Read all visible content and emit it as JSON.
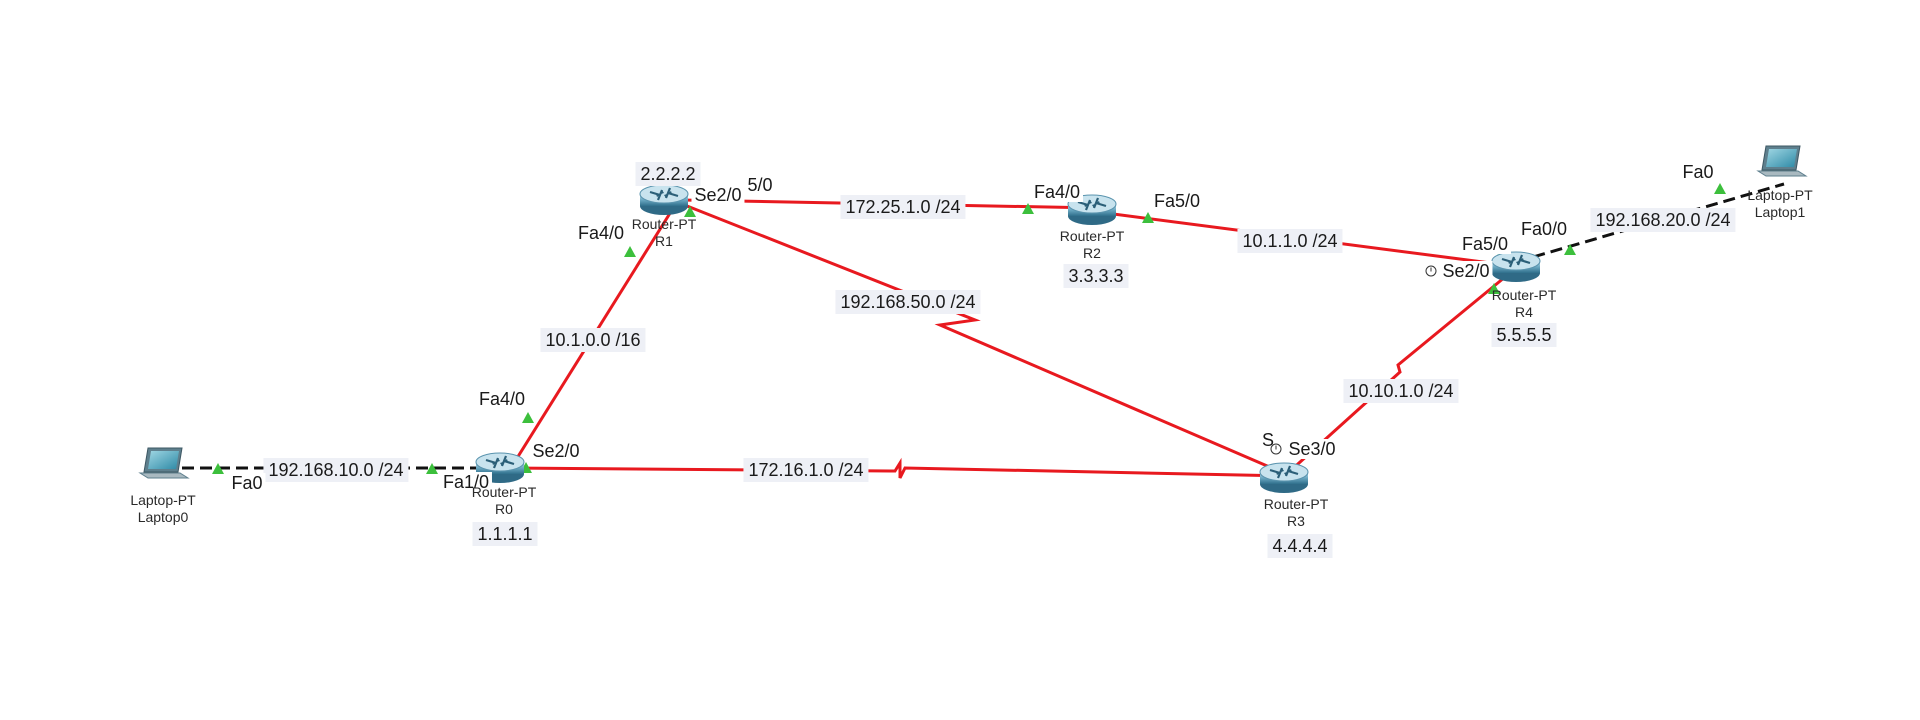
{
  "colors": {
    "serial_link": "#e8191f",
    "ethernet_link": "#111111",
    "port_indicator": "#3cbf3c",
    "label_background": "#eef0f6"
  },
  "devices": {
    "r0": {
      "model": "Router-PT",
      "name": "R0",
      "ip": "1.1.1.1",
      "icon": "router-icon"
    },
    "r1": {
      "model": "Router-PT",
      "name": "R1",
      "ip": "2.2.2.2",
      "icon": "router-icon"
    },
    "r2": {
      "model": "Router-PT",
      "name": "R2",
      "ip": "3.3.3.3",
      "icon": "router-icon"
    },
    "r3": {
      "model": "Router-PT",
      "name": "R3",
      "ip": "4.4.4.4",
      "icon": "router-icon"
    },
    "r4": {
      "model": "Router-PT",
      "name": "R4",
      "ip": "5.5.5.5",
      "icon": "router-icon"
    },
    "laptop0": {
      "model": "Laptop-PT",
      "name": "Laptop0",
      "icon": "laptop-icon"
    },
    "laptop1": {
      "model": "Laptop-PT",
      "name": "Laptop1",
      "icon": "laptop-icon"
    }
  },
  "networks": {
    "lan_left": "192.168.10.0 /24",
    "r0_r1": "10.1.0.0 /16",
    "r0_r3": "172.16.1.0 /24",
    "r1_r2": "172.25.1.0 /24",
    "r1_r3": "192.168.50.0 /24",
    "r2_r4": "10.1.1.0 /24",
    "r3_r4": "10.10.1.0 /24",
    "lan_right": "192.168.20.0 /24"
  },
  "ports": {
    "laptop0_fa0": "Fa0",
    "r0_fa1_0": "Fa1/0",
    "r0_fa4_0": "Fa4/0",
    "r0_se2_0": "Se2/0",
    "r1_fa4_0": "Fa4/0",
    "r1_se2_0": "Se2/0",
    "r1_fa5_0_partial": "5/0",
    "r2_fa4_0": "Fa4/0",
    "r2_fa5_0": "Fa5/0",
    "r3_se3_0": "Se3/0",
    "r3_se2_0_partial": "S",
    "r4_fa5_0": "Fa5/0",
    "r4_fa0_0": "Fa0/0",
    "r4_se2_0": "Se2/0",
    "laptop1_fa0": "Fa0"
  }
}
